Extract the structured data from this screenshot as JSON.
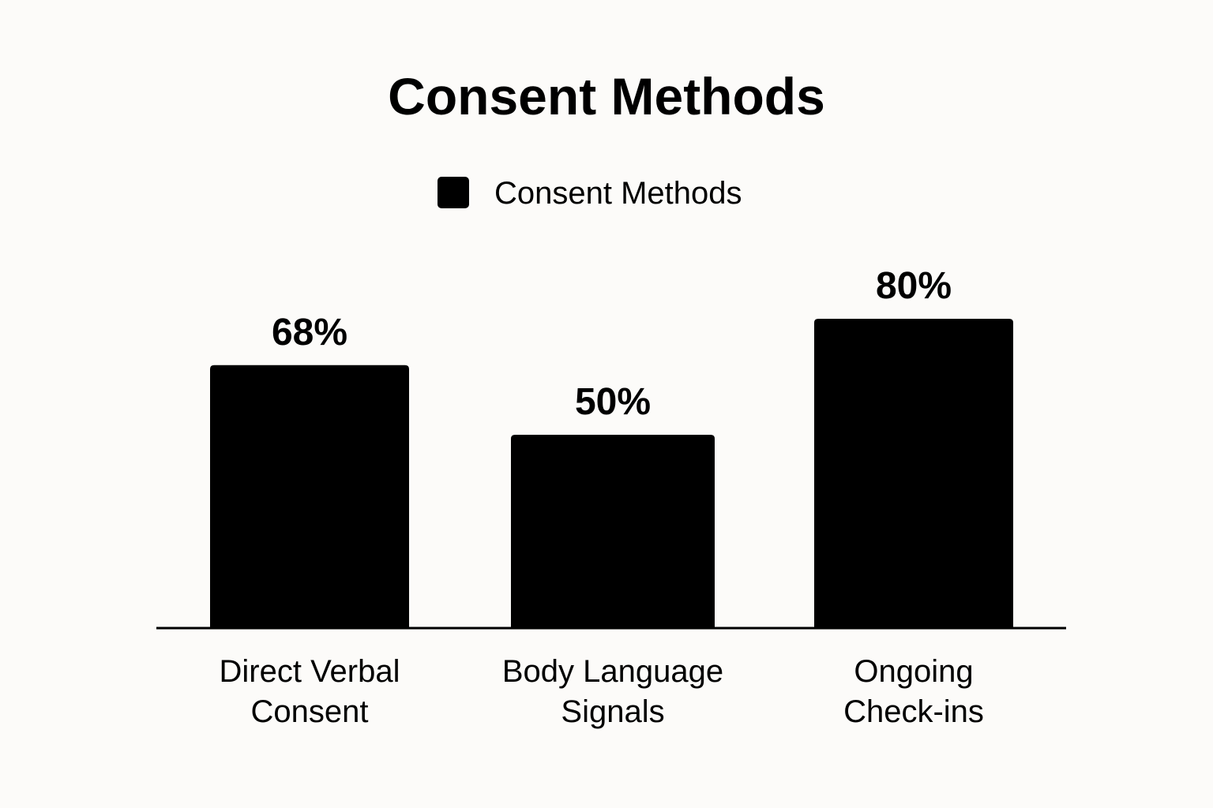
{
  "chart_data": {
    "type": "bar",
    "title": "Consent Methods",
    "categories": [
      [
        "Direct Verbal",
        "Consent"
      ],
      [
        "Body Language",
        "Signals"
      ],
      [
        "Ongoing",
        "Check-ins"
      ]
    ],
    "series": [
      {
        "name": "Consent Methods",
        "values": [
          68,
          50,
          80
        ],
        "value_labels": [
          "68%",
          "50%",
          "80%"
        ],
        "color": "#000000"
      }
    ],
    "ylim": [
      0,
      100
    ],
    "xlabel": "",
    "ylabel": "",
    "grid": false,
    "legend": "top-center"
  }
}
